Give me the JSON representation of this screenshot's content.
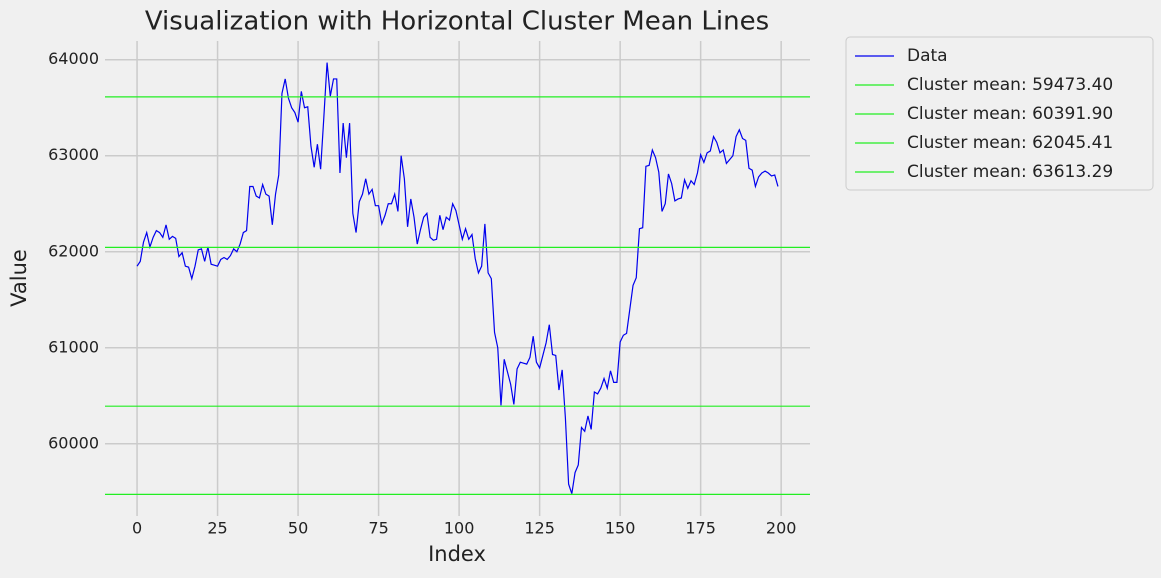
{
  "chart_data": {
    "type": "line",
    "title": "Visualization with Horizontal Cluster Mean Lines",
    "xlabel": "Index",
    "ylabel": "Value",
    "x": [
      0,
      1,
      2,
      3,
      4,
      5,
      6,
      7,
      8,
      9,
      10,
      11,
      12,
      13,
      14,
      15,
      16,
      17,
      18,
      19,
      20,
      21,
      22,
      23,
      24,
      25,
      26,
      27,
      28,
      29,
      30,
      31,
      32,
      33,
      34,
      35,
      36,
      37,
      38,
      39,
      40,
      41,
      42,
      43,
      44,
      45,
      46,
      47,
      48,
      49,
      50,
      51,
      52,
      53,
      54,
      55,
      56,
      57,
      58,
      59,
      60,
      61,
      62,
      63,
      64,
      65,
      66,
      67,
      68,
      69,
      70,
      71,
      72,
      73,
      74,
      75,
      76,
      77,
      78,
      79,
      80,
      81,
      82,
      83,
      84,
      85,
      86,
      87,
      88,
      89,
      90,
      91,
      92,
      93,
      94,
      95,
      96,
      97,
      98,
      99,
      100,
      101,
      102,
      103,
      104,
      105,
      106,
      107,
      108,
      109,
      110,
      111,
      112,
      113,
      114,
      115,
      116,
      117,
      118,
      119,
      120,
      121,
      122,
      123,
      124,
      125,
      126,
      127,
      128,
      129,
      130,
      131,
      132,
      133,
      134,
      135,
      136,
      137,
      138,
      139,
      140,
      141,
      142,
      143,
      144,
      145,
      146,
      147,
      148,
      149,
      150,
      151,
      152,
      153,
      154,
      155,
      156,
      157,
      158,
      159,
      160,
      161,
      162,
      163,
      164,
      165,
      166,
      167,
      168,
      169,
      170,
      171,
      172,
      173,
      174,
      175,
      176,
      177,
      178,
      179,
      180,
      181,
      182,
      183,
      184,
      185,
      186,
      187,
      188,
      189,
      190,
      191,
      192,
      193,
      194,
      195,
      196,
      197,
      198,
      199
    ],
    "series": [
      {
        "name": "Data",
        "color": "#0000ee",
        "values": [
          61850,
          61900,
          62100,
          62200,
          62050,
          62150,
          62220,
          62200,
          62150,
          62280,
          62130,
          62160,
          62140,
          61950,
          61990,
          61850,
          61840,
          61720,
          61850,
          62020,
          62030,
          61900,
          62050,
          61870,
          61860,
          61850,
          61920,
          61940,
          61920,
          61960,
          62030,
          62000,
          62080,
          62200,
          62220,
          62680,
          62680,
          62580,
          62560,
          62700,
          62600,
          62580,
          62280,
          62600,
          62800,
          63650,
          63800,
          63600,
          63500,
          63450,
          63350,
          63670,
          63500,
          63510,
          63100,
          62880,
          63120,
          62860,
          63400,
          63970,
          63620,
          63800,
          63800,
          62820,
          63340,
          62980,
          63340,
          62400,
          62200,
          62520,
          62600,
          62760,
          62600,
          62650,
          62480,
          62480,
          62290,
          62380,
          62500,
          62500,
          62600,
          62420,
          63000,
          62760,
          62260,
          62550,
          62360,
          62080,
          62230,
          62360,
          62400,
          62150,
          62120,
          62130,
          62380,
          62230,
          62360,
          62330,
          62500,
          62430,
          62280,
          62130,
          62240,
          62130,
          62180,
          61930,
          61780,
          61850,
          62290,
          61780,
          61720,
          61160,
          61000,
          60400,
          60880,
          60750,
          60620,
          60410,
          60780,
          60850,
          60840,
          60830,
          60900,
          61120,
          60850,
          60790,
          60920,
          61050,
          61240,
          60930,
          60920,
          60560,
          60770,
          60270,
          59580,
          59480,
          59700,
          59780,
          60170,
          60130,
          60290,
          60150,
          60540,
          60520,
          60580,
          60680,
          60580,
          60760,
          60640,
          60640,
          61060,
          61130,
          61150,
          61400,
          61650,
          61730,
          62240,
          62250,
          62890,
          62900,
          63060,
          62980,
          62830,
          62420,
          62500,
          62810,
          62710,
          62530,
          62550,
          62560,
          62750,
          62660,
          62740,
          62700,
          62820,
          63010,
          62930,
          63030,
          63050,
          63200,
          63140,
          63030,
          63060,
          62920,
          62960,
          63000,
          63200,
          63270,
          63180,
          63160,
          62870,
          62850,
          62680,
          62780,
          62820,
          62840,
          62820,
          62790,
          62800,
          62680
        ]
      }
    ],
    "hlines": [
      {
        "name": "Cluster mean: 59473.40",
        "value": 59473.4,
        "color": "#22ee22"
      },
      {
        "name": "Cluster mean: 60391.90",
        "value": 60391.9,
        "color": "#22ee22"
      },
      {
        "name": "Cluster mean: 62045.41",
        "value": 62045.41,
        "color": "#22ee22"
      },
      {
        "name": "Cluster mean: 63613.29",
        "value": 63613.29,
        "color": "#22ee22"
      }
    ],
    "xlim": [
      -9.95,
      208.95
    ],
    "ylim": [
      59248,
      64195
    ],
    "xticks": [
      0,
      25,
      50,
      75,
      100,
      125,
      150,
      175,
      200
    ],
    "yticks": [
      60000,
      61000,
      62000,
      63000,
      64000
    ],
    "grid": true,
    "legend": "outside-right"
  }
}
